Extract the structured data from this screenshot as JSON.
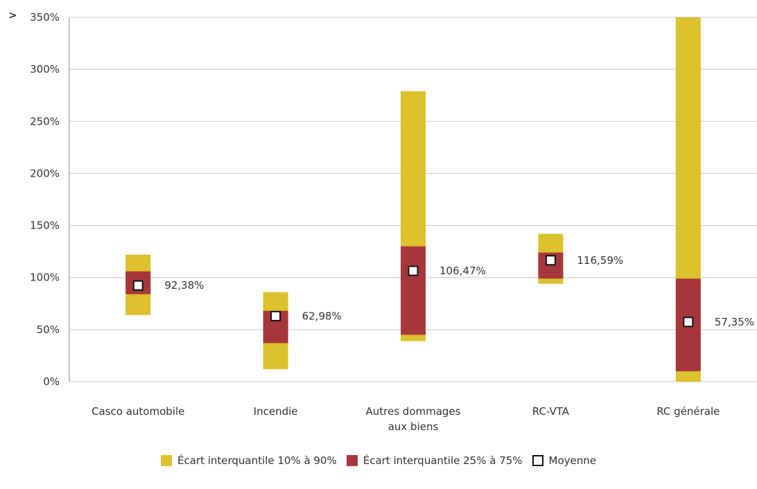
{
  "colors": {
    "p10_90": "#dcc22d",
    "p25_75": "#a7373c",
    "mean_fill": "#ffffff",
    "mean_stroke": "#111111",
    "grid": "#c8c8c8",
    "axis": "#888888"
  },
  "chart_data": {
    "type": "box",
    "y_unit": "%",
    "ylim": [
      0,
      350
    ],
    "y_ticks": [
      0,
      50,
      100,
      150,
      200,
      250,
      300,
      350
    ],
    "y_tick_labels": [
      "0%",
      "50%",
      "100%",
      "150%",
      "200%",
      "250%",
      "300%",
      "350%"
    ],
    "y_overflow_marker": ">",
    "grid": true,
    "legend_position": "bottom-center",
    "categories": [
      {
        "label_lines": [
          "Casco automobile"
        ],
        "p10": 64,
        "p25": 84,
        "p75": 106,
        "p90": 122,
        "mean": 92.38,
        "mean_label": "92,38%"
      },
      {
        "label_lines": [
          "Incendie"
        ],
        "p10": 12,
        "p25": 37,
        "p75": 68,
        "p90": 86,
        "mean": 62.98,
        "mean_label": "62,98%"
      },
      {
        "label_lines": [
          "Autres dommages",
          "aux biens"
        ],
        "p10": 39,
        "p25": 45,
        "p75": 130,
        "p90": 279,
        "mean": 106.47,
        "mean_label": "106,47%"
      },
      {
        "label_lines": [
          "RC-VTA"
        ],
        "p10": 94,
        "p25": 99,
        "p75": 124,
        "p90": 142,
        "mean": 116.59,
        "mean_label": "116,59%"
      },
      {
        "label_lines": [
          "RC générale"
        ],
        "p10": 0,
        "p25": 10,
        "p75": 99,
        "p90": 350,
        "mean": 57.35,
        "mean_label": "57,35%"
      }
    ],
    "legend": [
      {
        "key": "p10_90",
        "label": "Écart interquantile 10% à 90%"
      },
      {
        "key": "p25_75",
        "label": "Écart interquantile 25% à 75%"
      },
      {
        "key": "mean",
        "label": "Moyenne"
      }
    ]
  }
}
